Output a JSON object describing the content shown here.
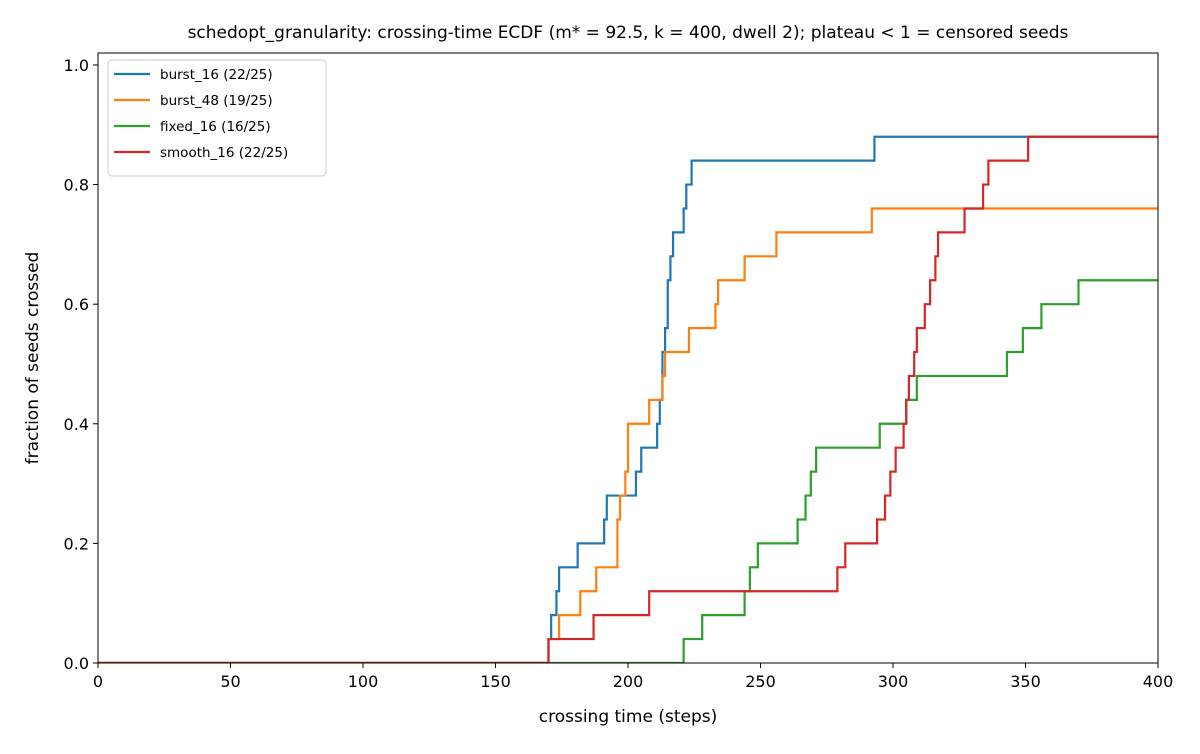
{
  "chart_data": {
    "type": "line",
    "step": true,
    "title": "schedopt_granularity: crossing-time ECDF (m* = 92.5, k = 400, dwell 2); plateau < 1 = censored seeds",
    "xlabel": "crossing time (steps)",
    "ylabel": "fraction of seeds crossed",
    "xlim": [
      0,
      400
    ],
    "ylim": [
      0,
      1.02
    ],
    "xticks": [
      0,
      50,
      100,
      150,
      200,
      250,
      300,
      350,
      400
    ],
    "yticks": [
      0.0,
      0.2,
      0.4,
      0.6,
      0.8,
      1.0
    ],
    "xtick_labels": [
      "0",
      "50",
      "100",
      "150",
      "200",
      "250",
      "300",
      "350",
      "400"
    ],
    "ytick_labels": [
      "0.0",
      "0.2",
      "0.4",
      "0.6",
      "0.8",
      "1.0"
    ],
    "grid": false,
    "legend_position": "top-left",
    "series": [
      {
        "name": "burst_16 (22/25)",
        "color": "#1f77b4",
        "x": [
          0,
          170,
          171,
          173,
          174,
          175,
          181,
          191,
          192,
          200,
          203,
          205,
          211,
          212,
          213,
          214,
          215,
          216,
          217,
          221,
          222,
          224,
          293,
          350,
          400
        ],
        "y": [
          0,
          0.04,
          0.08,
          0.12,
          0.16,
          0.16,
          0.2,
          0.24,
          0.28,
          0.28,
          0.32,
          0.36,
          0.4,
          0.44,
          0.52,
          0.56,
          0.64,
          0.68,
          0.72,
          0.76,
          0.8,
          0.84,
          0.88,
          0.88,
          0.88
        ]
      },
      {
        "name": "burst_48 (19/25)",
        "color": "#ff7f0e",
        "x": [
          0,
          170,
          174,
          182,
          188,
          196,
          197,
          199,
          200,
          208,
          213,
          214,
          223,
          233,
          234,
          244,
          256,
          292,
          400
        ],
        "y": [
          0,
          0.04,
          0.08,
          0.12,
          0.16,
          0.24,
          0.28,
          0.32,
          0.4,
          0.44,
          0.48,
          0.52,
          0.56,
          0.6,
          0.64,
          0.68,
          0.72,
          0.76,
          0.76
        ]
      },
      {
        "name": "fixed_16 (16/25)",
        "color": "#2ca02c",
        "x": [
          0,
          221,
          228,
          244,
          246,
          249,
          264,
          267,
          269,
          271,
          272,
          295,
          305,
          309,
          343,
          349,
          356,
          370,
          400
        ],
        "y": [
          0,
          0.04,
          0.08,
          0.12,
          0.16,
          0.2,
          0.24,
          0.28,
          0.32,
          0.36,
          0.36,
          0.4,
          0.44,
          0.48,
          0.52,
          0.56,
          0.6,
          0.64,
          0.64
        ]
      },
      {
        "name": "smooth_16 (22/25)",
        "color": "#d62728",
        "x": [
          0,
          170,
          187,
          208,
          279,
          282,
          294,
          297,
          299,
          301,
          304,
          305,
          306,
          308,
          309,
          312,
          314,
          316,
          317,
          318,
          327,
          334,
          336,
          351,
          400
        ],
        "y": [
          0,
          0.04,
          0.08,
          0.12,
          0.16,
          0.2,
          0.24,
          0.28,
          0.32,
          0.36,
          0.4,
          0.44,
          0.48,
          0.52,
          0.56,
          0.6,
          0.64,
          0.68,
          0.72,
          0.72,
          0.76,
          0.8,
          0.84,
          0.88,
          0.88
        ]
      }
    ]
  }
}
